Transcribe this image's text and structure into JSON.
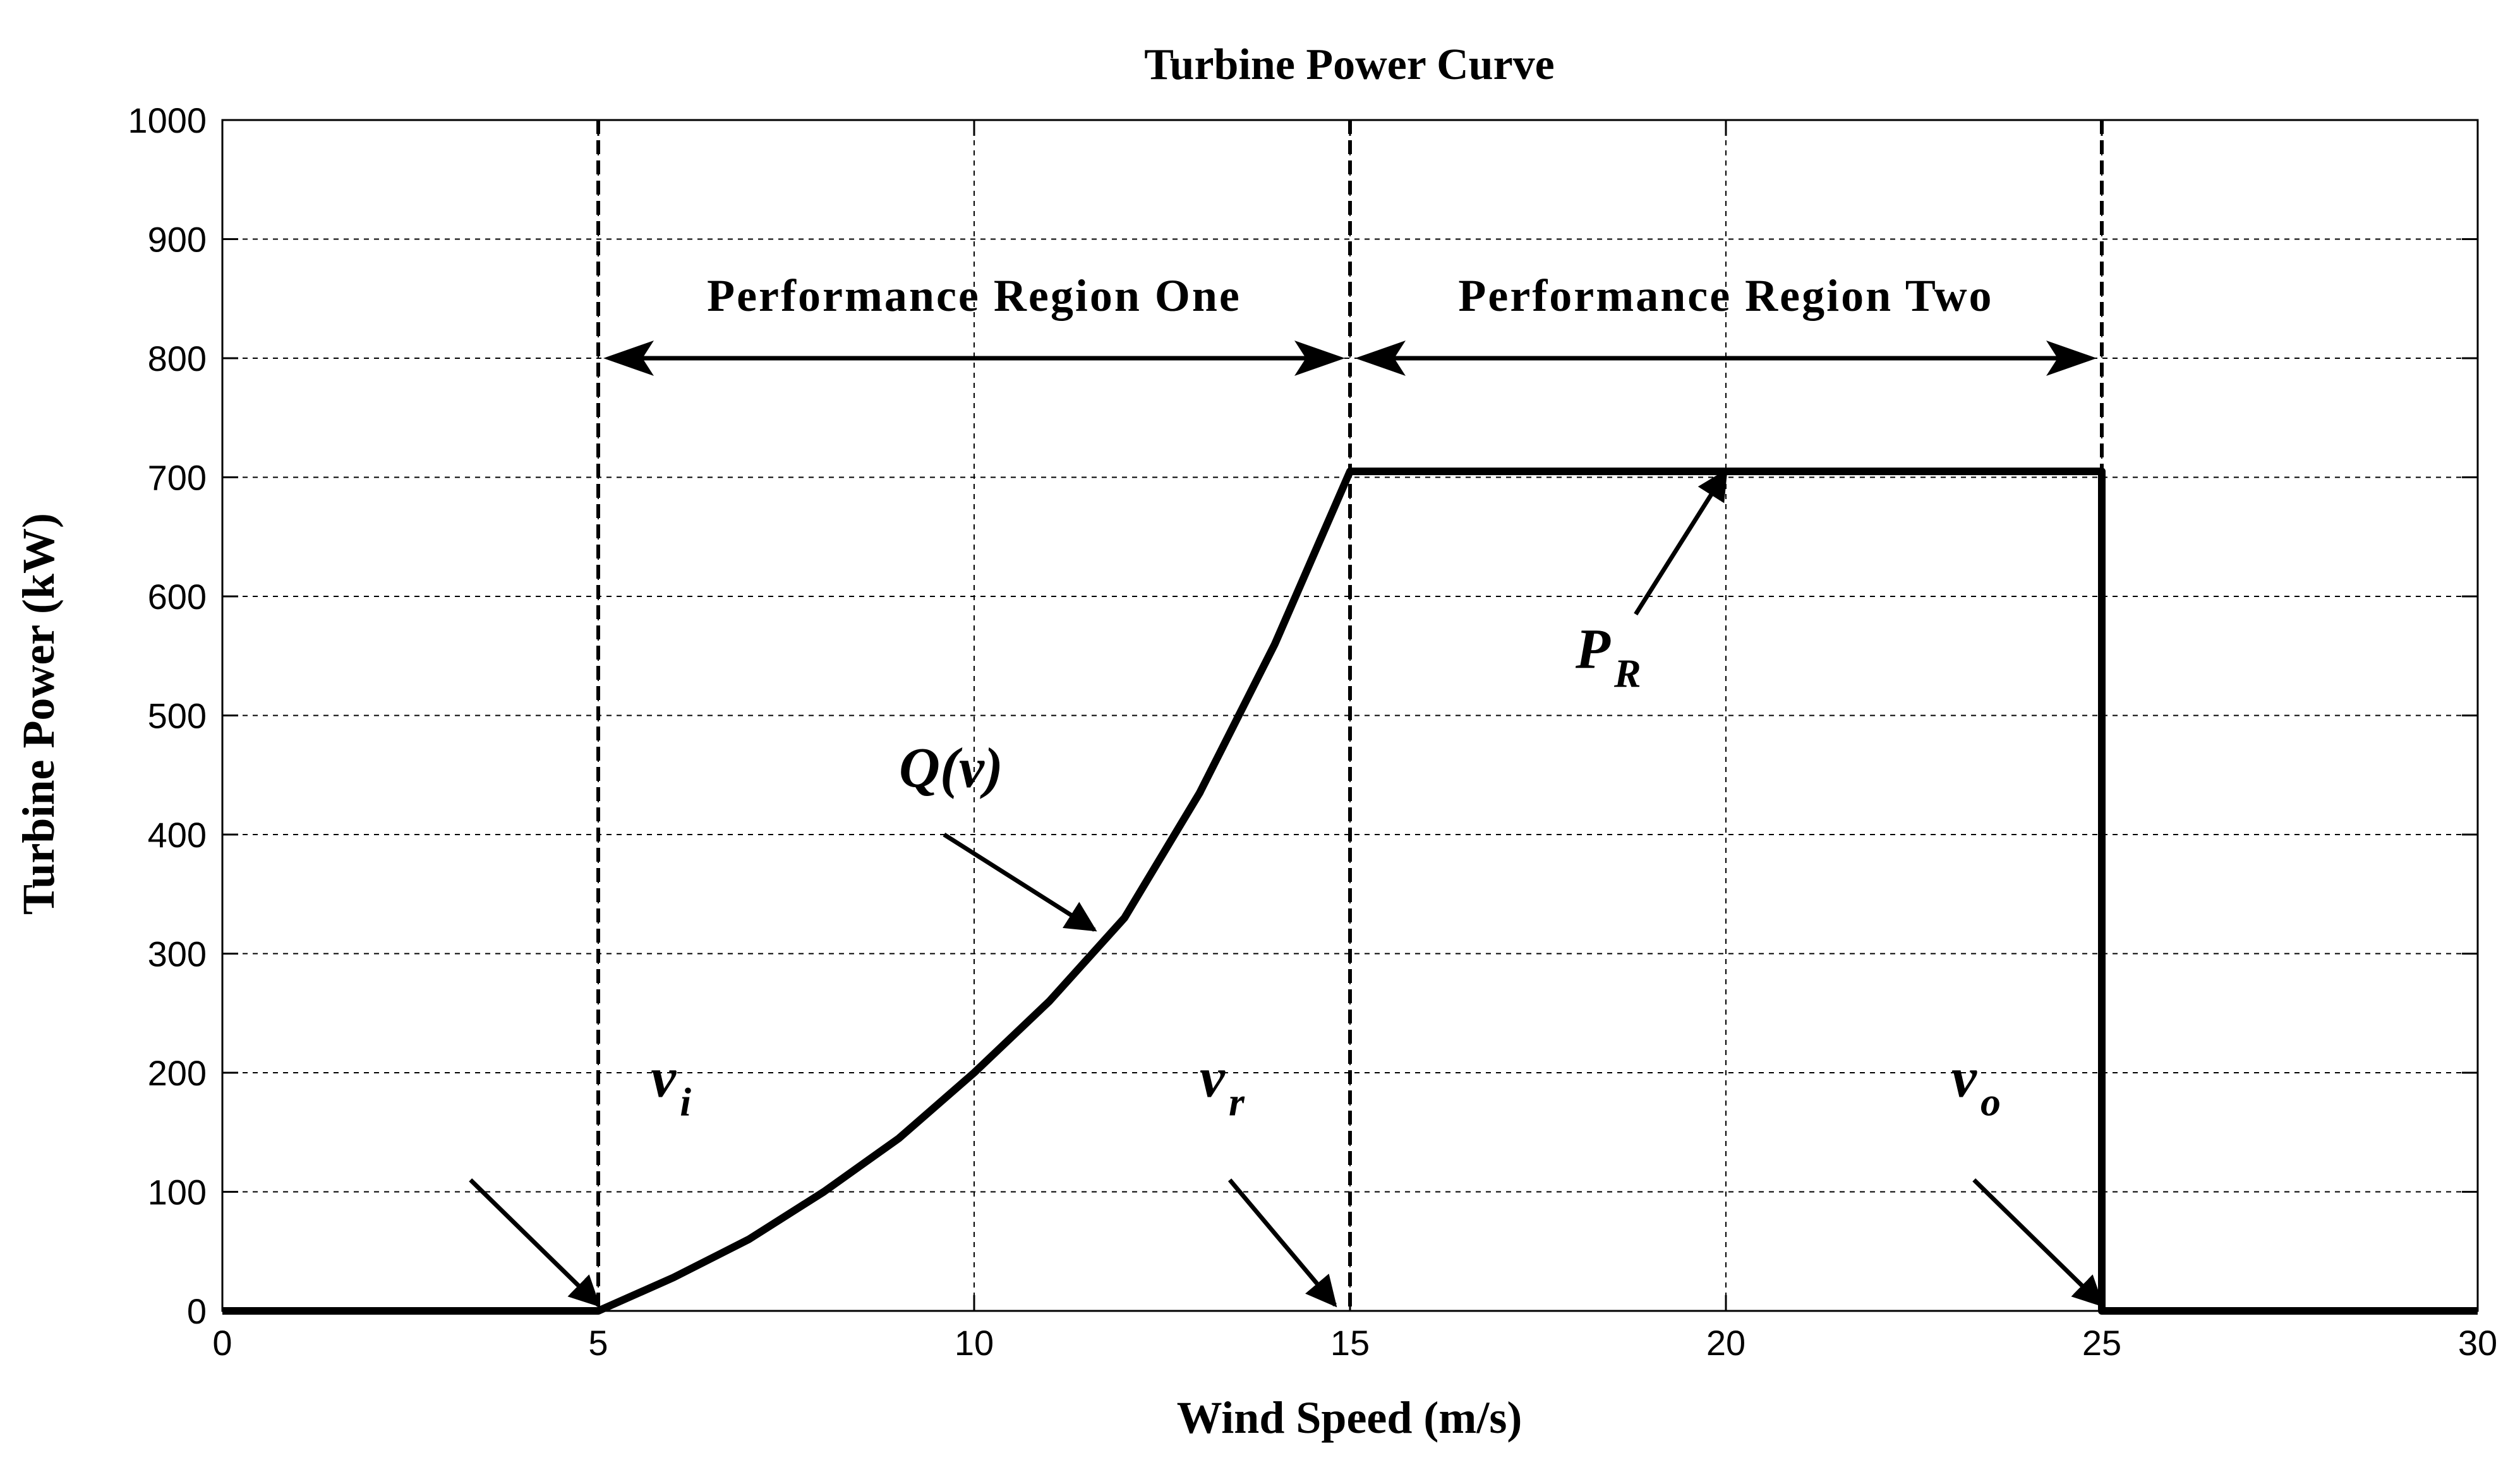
{
  "chart_data": {
    "type": "line",
    "title": "Turbine Power Curve",
    "xlabel": "Wind Speed (m/s)",
    "ylabel": "Turbine Power (kW)",
    "xlim": [
      0,
      30
    ],
    "ylim": [
      0,
      1000
    ],
    "grid": true,
    "x_ticks": [
      0,
      5,
      10,
      15,
      20,
      25,
      30
    ],
    "y_ticks": [
      0,
      100,
      200,
      300,
      400,
      500,
      600,
      700,
      800,
      900,
      1000
    ],
    "series": [
      {
        "name": "Turbine power",
        "x": [
          0,
          5,
          6,
          7,
          8,
          9,
          10,
          11,
          12,
          13,
          14,
          15,
          15,
          20,
          25,
          25,
          30
        ],
        "y": [
          0,
          0,
          28,
          60,
          100,
          145,
          200,
          260,
          330,
          435,
          560,
          705,
          705,
          705,
          705,
          0,
          0
        ]
      }
    ],
    "vertical_lines": [
      5,
      15,
      25
    ],
    "regions": [
      {
        "label": "Performance Region One",
        "from": 5,
        "to": 15,
        "y": 800
      },
      {
        "label": "Performance Region Two",
        "from": 15,
        "to": 25,
        "y": 800
      }
    ],
    "annotations": [
      {
        "main": "v",
        "sub": "i",
        "text_x": 5.7,
        "text_y": 180,
        "tail": [
          3.3,
          110
        ],
        "head": [
          5.0,
          5
        ]
      },
      {
        "main": "v",
        "sub": "r",
        "text_x": 13.0,
        "text_y": 180,
        "tail": [
          13.4,
          110
        ],
        "head": [
          14.8,
          5
        ]
      },
      {
        "main": "v",
        "sub": "o",
        "text_x": 23.0,
        "text_y": 180,
        "tail": [
          23.3,
          110
        ],
        "head": [
          25.0,
          5
        ]
      },
      {
        "main": "Q(v)",
        "sub": "",
        "text_x": 9.0,
        "text_y": 440,
        "tail": [
          9.6,
          400
        ],
        "head": [
          11.6,
          320
        ]
      },
      {
        "main": "P",
        "sub": "R",
        "text_x": 18.0,
        "text_y": 540,
        "tail": [
          18.8,
          585
        ],
        "head": [
          20.0,
          705
        ]
      }
    ]
  }
}
